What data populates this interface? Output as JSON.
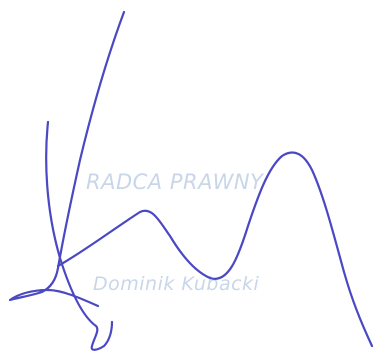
{
  "stamp": {
    "title": "RADCA PRAWNY",
    "name": "Dominik Kubacki"
  },
  "signature": {
    "ink_color": "#4a48c2",
    "icon": "handwritten-signature-icon"
  },
  "colors": {
    "stamp_ink": "#c9d6ea",
    "paper": "#ffffff"
  }
}
